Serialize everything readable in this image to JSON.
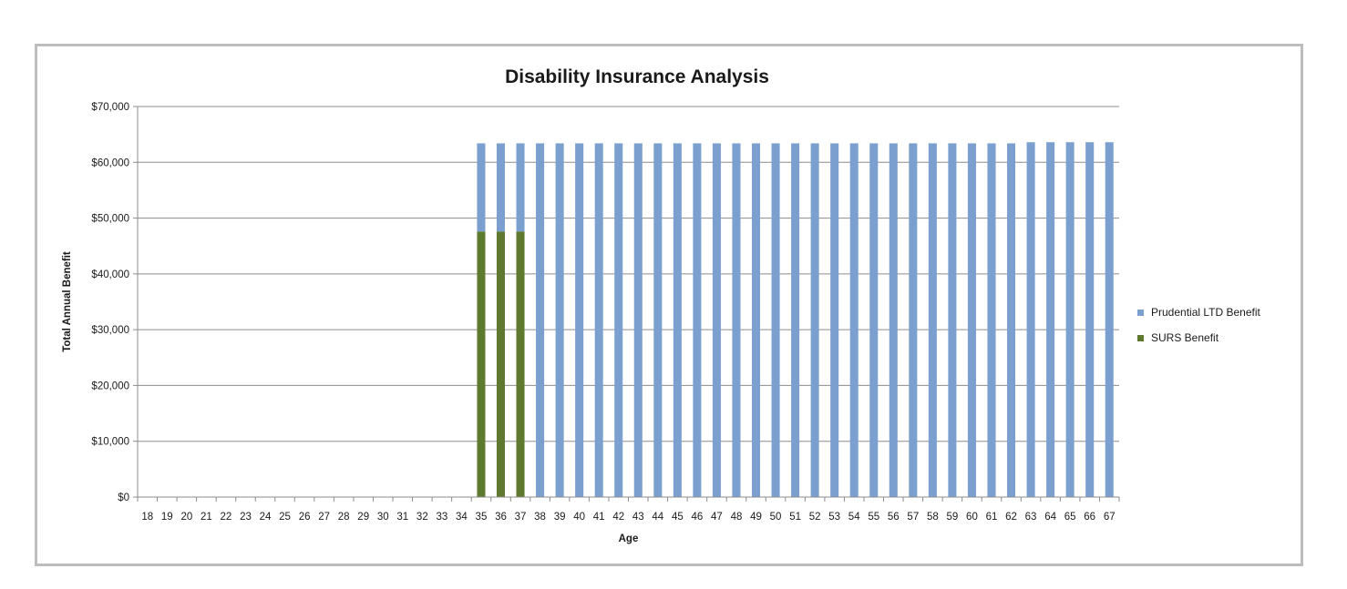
{
  "chart_data": {
    "type": "bar",
    "stacked": true,
    "title": "Disability Insurance Analysis",
    "xlabel": "Age",
    "ylabel": "Total Annual Benefit",
    "ylim": [
      0,
      70000
    ],
    "yticks": [
      "$0",
      "$10,000",
      "$20,000",
      "$30,000",
      "$40,000",
      "$50,000",
      "$60,000",
      "$70,000"
    ],
    "ytick_values": [
      0,
      10000,
      20000,
      30000,
      40000,
      50000,
      60000,
      70000
    ],
    "grid": true,
    "legend_position": "right",
    "categories": [
      "18",
      "19",
      "20",
      "21",
      "22",
      "23",
      "24",
      "25",
      "26",
      "27",
      "28",
      "29",
      "30",
      "31",
      "32",
      "33",
      "34",
      "35",
      "36",
      "37",
      "38",
      "39",
      "40",
      "41",
      "42",
      "43",
      "44",
      "45",
      "46",
      "47",
      "48",
      "49",
      "50",
      "51",
      "52",
      "53",
      "54",
      "55",
      "56",
      "57",
      "58",
      "59",
      "60",
      "61",
      "62",
      "63",
      "64",
      "65",
      "66",
      "67"
    ],
    "series": [
      {
        "name": "SURS Benefit",
        "color": "#5f7a2e",
        "values": [
          0,
          0,
          0,
          0,
          0,
          0,
          0,
          0,
          0,
          0,
          0,
          0,
          0,
          0,
          0,
          0,
          0,
          47600,
          47600,
          47600,
          0,
          0,
          0,
          0,
          0,
          0,
          0,
          0,
          0,
          0,
          0,
          0,
          0,
          0,
          0,
          0,
          0,
          0,
          0,
          0,
          0,
          0,
          0,
          0,
          0,
          0,
          0,
          0,
          0,
          0
        ]
      },
      {
        "name": "Prudential LTD Benefit",
        "color": "#7ba0cf",
        "values": [
          0,
          0,
          0,
          0,
          0,
          0,
          0,
          0,
          0,
          0,
          0,
          0,
          0,
          0,
          0,
          0,
          0,
          15800,
          15800,
          15800,
          63400,
          63400,
          63400,
          63400,
          63400,
          63400,
          63400,
          63400,
          63400,
          63400,
          63400,
          63400,
          63400,
          63400,
          63400,
          63400,
          63400,
          63400,
          63400,
          63400,
          63400,
          63400,
          63400,
          63400,
          63400,
          63600,
          63600,
          63600,
          63600,
          63600
        ]
      }
    ],
    "legend": [
      "Prudential LTD Benefit",
      "SURS Benefit"
    ]
  }
}
